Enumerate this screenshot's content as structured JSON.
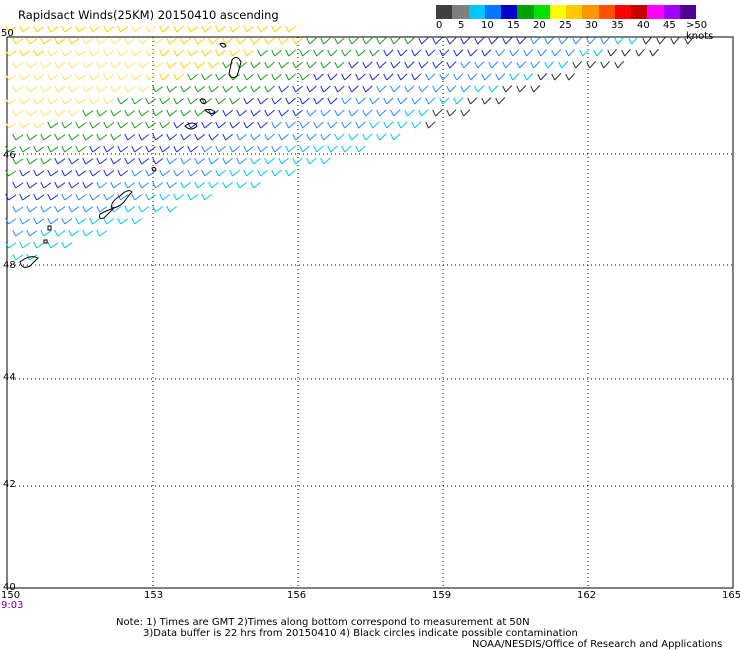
{
  "title": "Rapidsact Winds(25KM) 20150410 ascending",
  "legend": {
    "labels": [
      "0",
      "5",
      "10",
      "15",
      "20",
      "25",
      "30",
      "35",
      "40",
      "45",
      ">50 knots"
    ],
    "colors": [
      "#404040",
      "#7f7f7f",
      "#00c8ff",
      "#0078ff",
      "#0000c8",
      "#00a000",
      "#00e000",
      "#ffff00",
      "#ffc800",
      "#ff9600",
      "#ff5000",
      "#ff0000",
      "#c80000",
      "#ff00ff",
      "#a000ff",
      "#500096"
    ]
  },
  "map": {
    "lon_ticks": [
      "150",
      "153",
      "156",
      "159",
      "162",
      "165"
    ],
    "lat_ticks": [
      "50",
      "46",
      "48",
      "44",
      "42",
      "40"
    ],
    "time_label": "9:03"
  },
  "notes": {
    "line1": "Note: 1) Times are GMT 2)Times along bottom correspond to measurement at 50N",
    "line2": "3)Data buffer is 22 hrs from 20150410 4) Black circles indicate possible contamination",
    "line3": "NOAA/NESDIS/Office of Research and Applications"
  }
}
